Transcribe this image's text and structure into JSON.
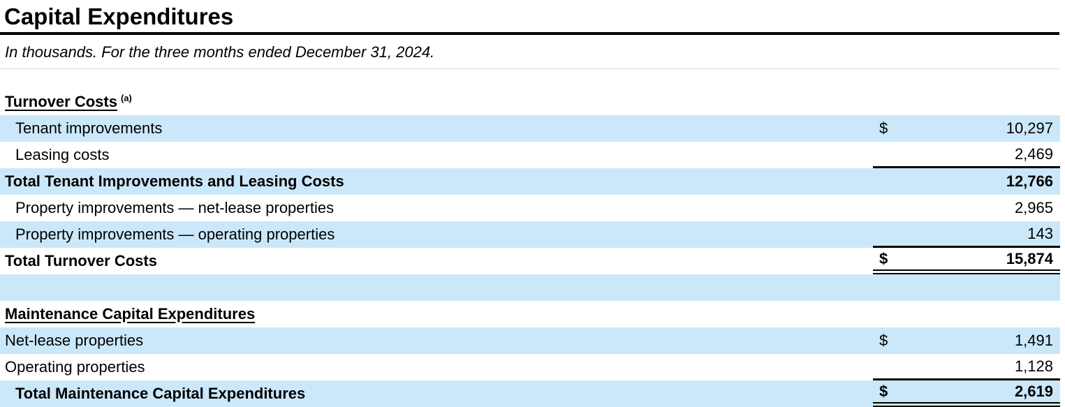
{
  "page": {
    "title": "Capital Expenditures",
    "subtitle": "In thousands. For the three months ended December 31, 2024."
  },
  "colors": {
    "row_shade_blue": "#cbe8fa",
    "rule_black": "#000000",
    "rule_light_gray": "#d8d8d8"
  },
  "table": {
    "currency_symbol": "$",
    "rows": [
      {
        "style": "section-header",
        "label": "Turnover Costs",
        "superscript": "(a)",
        "shade": false,
        "indent": false,
        "dollar": "",
        "value": "",
        "border": "none"
      },
      {
        "style": "data",
        "label": "Tenant improvements",
        "shade": true,
        "indent": true,
        "dollar": "$",
        "value": "10,297",
        "border": "none"
      },
      {
        "style": "data",
        "label": "Leasing costs",
        "shade": false,
        "indent": true,
        "dollar": "",
        "value": "2,469",
        "border": "single"
      },
      {
        "style": "total",
        "label": "Total Tenant Improvements and Leasing Costs",
        "shade": true,
        "indent": false,
        "dollar": "",
        "value": "12,766",
        "border": "none"
      },
      {
        "style": "data",
        "label": "Property improvements — net-lease properties",
        "shade": false,
        "indent": true,
        "dollar": "",
        "value": "2,965",
        "border": "none"
      },
      {
        "style": "data",
        "label": "Property improvements — operating properties",
        "shade": true,
        "indent": true,
        "dollar": "",
        "value": "143",
        "border": "single"
      },
      {
        "style": "total",
        "label": "Total Turnover Costs",
        "shade": false,
        "indent": false,
        "dollar": "$",
        "value": "15,874",
        "border": "double"
      },
      {
        "style": "blank",
        "label": "",
        "shade": true,
        "indent": false,
        "dollar": "",
        "value": "",
        "border": "none"
      },
      {
        "style": "section-header",
        "label": "Maintenance Capital Expenditures",
        "shade": false,
        "indent": false,
        "dollar": "",
        "value": "",
        "border": "none"
      },
      {
        "style": "data",
        "label": "Net-lease properties",
        "shade": true,
        "indent": false,
        "dollar": "$",
        "value": "1,491",
        "border": "none"
      },
      {
        "style": "data",
        "label": "Operating properties",
        "shade": false,
        "indent": false,
        "dollar": "",
        "value": "1,128",
        "border": "single"
      },
      {
        "style": "total",
        "label": "Total Maintenance Capital Expenditures",
        "shade": true,
        "indent": true,
        "dollar": "$",
        "value": "2,619",
        "border": "double"
      }
    ]
  }
}
